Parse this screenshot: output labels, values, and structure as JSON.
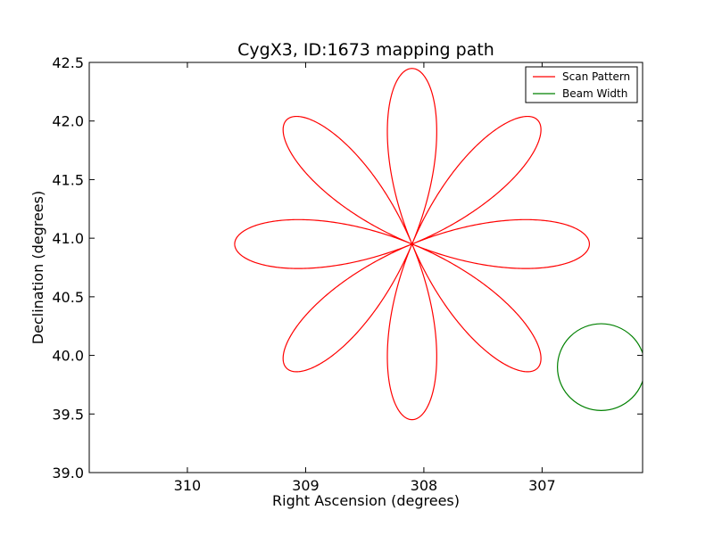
{
  "chart_data": {
    "type": "line",
    "title": "CygX3, ID:1673 mapping path",
    "xlabel": "Right Ascension (degrees)",
    "ylabel": "Declination (degrees)",
    "xlim": [
      310.83,
      306.15
    ],
    "ylim": [
      39.0,
      42.5
    ],
    "x_ticks": [
      310,
      309,
      308,
      307
    ],
    "y_ticks": [
      39.0,
      39.5,
      40.0,
      40.5,
      41.0,
      41.5,
      42.0,
      42.5
    ],
    "x_tick_labels": [
      "310",
      "309",
      "308",
      "307"
    ],
    "y_tick_labels": [
      "39.0",
      "39.5",
      "40.0",
      "40.5",
      "41.0",
      "41.5",
      "42.0",
      "42.5"
    ],
    "grid": false,
    "legend_position": "top-right",
    "series": [
      {
        "name": "Scan Pattern",
        "color": "#ff0000",
        "kind": "rose_curve",
        "center_ra": 308.1,
        "center_dec": 40.95,
        "petals": 8,
        "petal_length_deg": 1.5
      },
      {
        "name": "Beam Width",
        "color": "#008000",
        "kind": "circle",
        "center_ra": 306.5,
        "center_dec": 39.9,
        "radius_deg": 0.37
      }
    ]
  }
}
